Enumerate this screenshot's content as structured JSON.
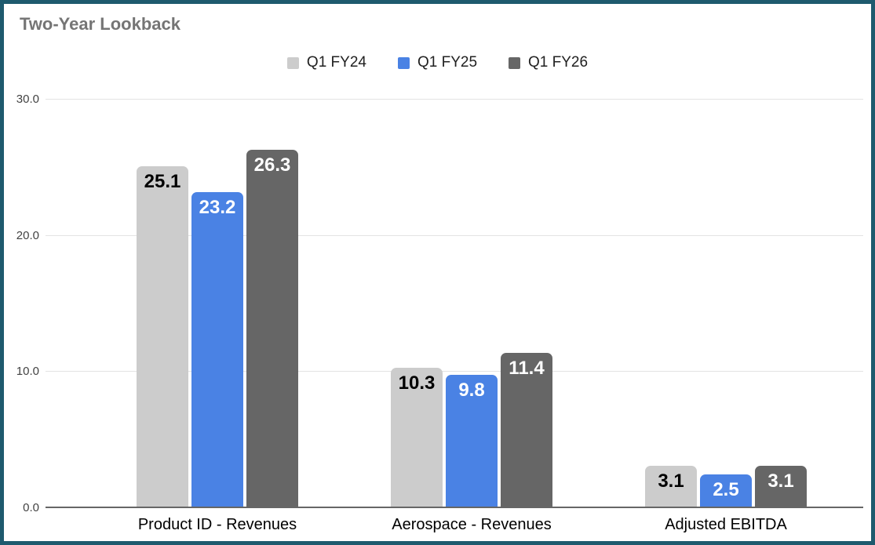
{
  "chart_data": {
    "type": "bar",
    "title": "Two-Year Lookback",
    "categories": [
      "Product ID - Revenues",
      "Aerospace - Revenues",
      "Adjusted EBITDA"
    ],
    "series": [
      {
        "name": "Q1 FY24",
        "color": "#cccccc",
        "label_color": "#000000",
        "values": [
          25.1,
          10.3,
          3.1
        ]
      },
      {
        "name": "Q1 FY25",
        "color": "#4a82e4",
        "label_color": "#ffffff",
        "values": [
          23.2,
          9.8,
          2.5
        ]
      },
      {
        "name": "Q1 FY26",
        "color": "#666666",
        "label_color": "#ffffff",
        "values": [
          26.3,
          11.4,
          3.1
        ]
      }
    ],
    "y_axis": {
      "min": 0,
      "max": 30,
      "ticks": [
        "0.0",
        "10.0",
        "20.0",
        "30.0"
      ]
    },
    "grid": true,
    "legend_position": "top",
    "value_labels": true,
    "value_label_decimals": 1
  },
  "theme": {
    "frame_border_color": "#1e5a6e",
    "background_color": "#ffffff",
    "title_color": "#757575",
    "gridline_color": "#e3e3e3",
    "axis_line_color": "#666666",
    "tick_label_color": "#424242",
    "category_label_color": "#000000",
    "legend_text_color": "#212121"
  }
}
